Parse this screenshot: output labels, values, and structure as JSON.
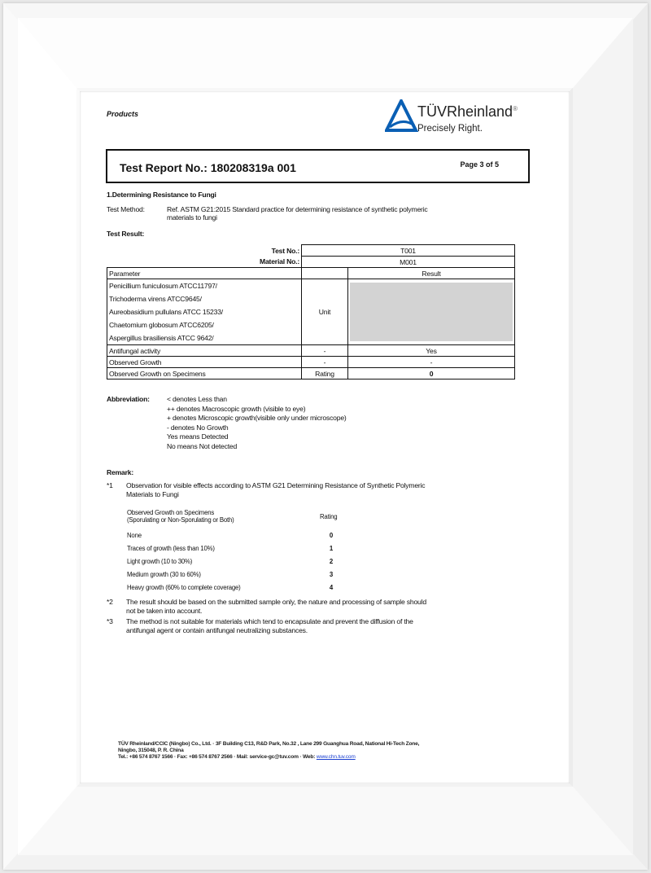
{
  "header": {
    "section": "Products",
    "brand": "TÜVRheinland",
    "registered": "®",
    "tagline": "Precisely Right.",
    "brand_color": "#0a5fb4"
  },
  "report": {
    "title": "Test Report No.: 180208319a 001",
    "page": "Page 3 of 5"
  },
  "section_title": "1.Determining Resistance to Fungi",
  "method": {
    "label": "Test Method:",
    "line1": "Ref. ASTM G21:2015 Standard practice for determining resistance of synthetic polymeric",
    "line2": "materials to fungi"
  },
  "result_label": "Test Result:",
  "table": {
    "test_no_label": "Test No.:",
    "test_no": "T001",
    "material_no_label": "Material No.:",
    "material_no": "M001",
    "col_parameter": "Parameter",
    "col_result": "Result",
    "organisms": [
      "Penicillium funiculosum ATCC11797/",
      "Trichoderma virens ATCC9645/",
      "Aureobasidium pullulans ATCC 15233/",
      "Chaetomium globosum ATCC6205/",
      "Aspergillus brasiliensis ATCC 9642/"
    ],
    "organisms_unit": "Unit",
    "rows": [
      {
        "parameter": "Antifungal activity",
        "unit": "-",
        "result": "Yes"
      },
      {
        "parameter": "Observed Growth",
        "unit": "-",
        "result": "-"
      },
      {
        "parameter": "Observed Growth on Specimens",
        "unit": "Rating",
        "result": "0"
      }
    ]
  },
  "abbreviation": {
    "label": "Abbreviation:",
    "items": [
      "< denotes Less than",
      "++ denotes Macroscopic growth (visible to eye)",
      "+ denotes  Microscopic growth(visible only under microscope)",
      "- denotes No Growth",
      "Yes means Detected",
      "No means Not detected"
    ]
  },
  "remark": {
    "label": "Remark:",
    "r1_mark": "*1",
    "r1_line1": "Observation for visible effects according to ASTM G21 Determining Resistance of Synthetic Polymeric",
    "r1_line2": "Materials to Fungi",
    "rating_head1": "Observed Growth on Specimens",
    "rating_head2": "(Sporulating or Non-Sporulating or Both)",
    "rating_col": "Rating",
    "ratings": [
      {
        "label": "None",
        "value": "0"
      },
      {
        "label": "Traces of growth (less than 10%)",
        "value": "1"
      },
      {
        "label": "Light growth (10 to 30%)",
        "value": "2"
      },
      {
        "label": "Medium growth (30 to 60%)",
        "value": "3"
      },
      {
        "label": "Heavy growth (60% to complete coverage)",
        "value": "4"
      }
    ],
    "r2_mark": "*2",
    "r2_line1": "The result should be based on the submitted sample only, the nature and processing of sample should",
    "r2_line2": "not be taken into account.",
    "r3_mark": "*3",
    "r3_line1": "The method is not suitable for materials which tend to encapsulate and prevent the diffusion of the",
    "r3_line2": "antifungal agent or contain antifungal neutralizing substances."
  },
  "footer": {
    "line1": "TÜV Rheinland/CCIC (Ningbo) Co., Ltd. · 3F Building C13, R&D Park, No.32 , Lane 299 Guanghua Road, National Hi-Tech Zone,",
    "line2": "Ningbo, 315048, P. R. China",
    "line3": "Tel.: +86 574 8767 1566 · Fax: +86 574 8767 2566 · Mail: service-gc@tuv.com · Web: ",
    "web": "www.chn.tuv.com"
  }
}
